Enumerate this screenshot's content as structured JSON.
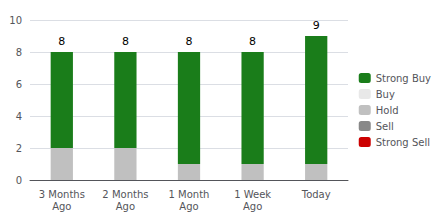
{
  "chart_data": {
    "type": "bar",
    "categories": [
      "3 Months\nAgo",
      "2 Months\nAgo",
      "1 Month\nAgo",
      "1 Week\nAgo",
      "Today"
    ],
    "series": [
      {
        "name": "Strong Buy",
        "color": "#1a7d1a",
        "values": [
          6,
          6,
          7,
          7,
          8
        ]
      },
      {
        "name": "Buy",
        "color": "#e8e8e8",
        "values": [
          0,
          0,
          0,
          0,
          0
        ]
      },
      {
        "name": "Hold",
        "color": "#c0c0c0",
        "values": [
          2,
          2,
          1,
          1,
          1
        ]
      },
      {
        "name": "Sell",
        "color": "#888888",
        "values": [
          0,
          0,
          0,
          0,
          0
        ]
      },
      {
        "name": "Strong Sell",
        "color": "#cc0000",
        "values": [
          0,
          0,
          0,
          0,
          0
        ]
      }
    ],
    "totals": [
      8,
      8,
      8,
      8,
      9
    ],
    "stacked": true,
    "ylim": [
      0,
      10
    ],
    "yticks": [
      0,
      2,
      4,
      6,
      8,
      10
    ],
    "grid": true,
    "legend": "right"
  }
}
